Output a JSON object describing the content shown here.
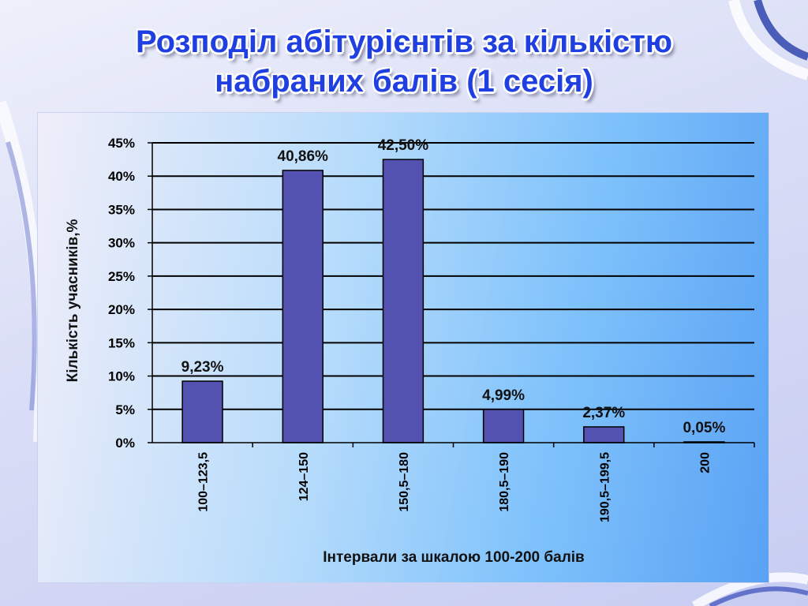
{
  "slide": {
    "title_line1": "Розподіл абітурієнтів за кількістю",
    "title_line2": "набраних балів (1 сесія)",
    "title_color": "#1f3fe0"
  },
  "chart_data": {
    "type": "bar",
    "categories": [
      "100–123,5",
      "124–150",
      "150,5–180",
      "180,5–190",
      "190,5–199,5",
      "200"
    ],
    "values": [
      9.23,
      40.86,
      42.5,
      4.99,
      2.37,
      0.05
    ],
    "data_labels": [
      "9,23%",
      "40,86%",
      "42,50%",
      "4,99%",
      "2,37%",
      "0,05%"
    ],
    "title": "Розподіл абітурієнтів за кількістю набраних балів (1 сесія)",
    "xlabel": "Інтервали за шкалою 100-200 балів",
    "ylabel": "Кількість учасників,%",
    "ylim": [
      0,
      45
    ],
    "yticks": [
      0,
      5,
      10,
      15,
      20,
      25,
      30,
      35,
      40,
      45
    ],
    "ytick_labels": [
      "0%",
      "5%",
      "10%",
      "15%",
      "20%",
      "25%",
      "30%",
      "35%",
      "40%",
      "45%"
    ],
    "grid": true,
    "bar_color": "#5352b1",
    "bar_edge_color": "#000000"
  }
}
